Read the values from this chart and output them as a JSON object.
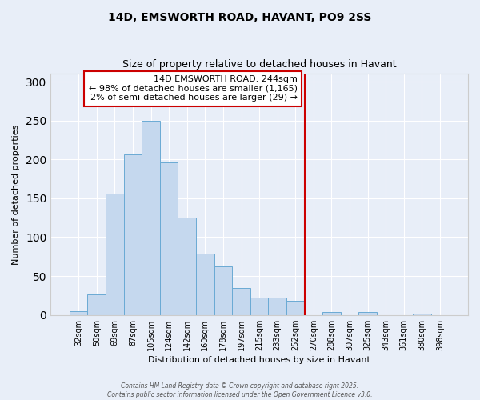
{
  "title": "14D, EMSWORTH ROAD, HAVANT, PO9 2SS",
  "subtitle": "Size of property relative to detached houses in Havant",
  "xlabel": "Distribution of detached houses by size in Havant",
  "ylabel": "Number of detached properties",
  "bar_labels": [
    "32sqm",
    "50sqm",
    "69sqm",
    "87sqm",
    "105sqm",
    "124sqm",
    "142sqm",
    "160sqm",
    "178sqm",
    "197sqm",
    "215sqm",
    "233sqm",
    "252sqm",
    "270sqm",
    "288sqm",
    "307sqm",
    "325sqm",
    "343sqm",
    "361sqm",
    "380sqm",
    "398sqm"
  ],
  "bar_values": [
    5,
    26,
    156,
    206,
    250,
    196,
    125,
    79,
    62,
    35,
    22,
    22,
    18,
    0,
    4,
    0,
    4,
    0,
    0,
    2,
    0
  ],
  "bar_color": "#c5d8ee",
  "bar_edge_color": "#6aaad4",
  "vline_x_index": 12.5,
  "vline_color": "#cc0000",
  "annotation_title": "14D EMSWORTH ROAD: 244sqm",
  "annotation_line1": "← 98% of detached houses are smaller (1,165)",
  "annotation_line2": "2% of semi-detached houses are larger (29) →",
  "annotation_box_color": "white",
  "annotation_box_edge_color": "#cc0000",
  "ylim": [
    0,
    310
  ],
  "yticks": [
    0,
    50,
    100,
    150,
    200,
    250,
    300
  ],
  "footer1": "Contains HM Land Registry data © Crown copyright and database right 2025.",
  "footer2": "Contains public sector information licensed under the Open Government Licence v3.0.",
  "background_color": "#e8eef8",
  "plot_bg_color": "#e8eef8",
  "grid_color": "#ffffff",
  "spine_color": "#cccccc"
}
